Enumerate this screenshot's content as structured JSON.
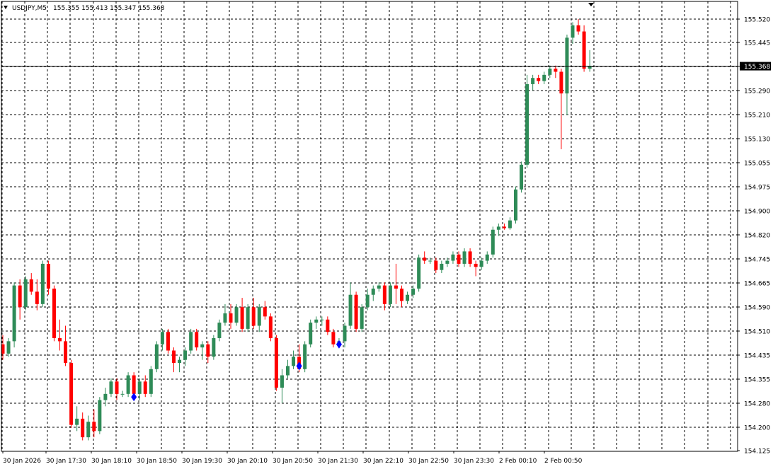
{
  "header": {
    "symbol": "USDJPY,M5",
    "ohlc": "155.355 155.413 155.347 155.368"
  },
  "colors": {
    "background": "#ffffff",
    "grid": "#000000",
    "bull": "#2e8b57",
    "bear": "#ff0000",
    "marker": "#0000ff",
    "bid_line": "#000000",
    "price_tag_bg": "#000000",
    "price_tag_text": "#ffffff"
  },
  "icons": {
    "dropdown": "triangle-down-icon",
    "shift": "triangle-down-icon",
    "marker": "diamond-icon"
  },
  "chart_data": {
    "type": "candlestick",
    "ylim": [
      154.125,
      155.55
    ],
    "y_ticks": [
      "155.520",
      "155.445",
      "155.368",
      "155.290",
      "155.210",
      "155.130",
      "155.055",
      "154.975",
      "154.900",
      "154.820",
      "154.745",
      "154.665",
      "154.590",
      "154.510",
      "154.435",
      "154.355",
      "154.280",
      "154.200",
      "154.125"
    ],
    "current_price": "155.368",
    "x_labels": [
      "30 Jan 2026",
      "30 Jan 17:30",
      "30 Jan 18:10",
      "30 Jan 18:50",
      "30 Jan 19:30",
      "30 Jan 20:10",
      "30 Jan 20:50",
      "30 Jan 21:30",
      "30 Jan 22:10",
      "30 Jan 22:50",
      "30 Jan 23:30",
      "2 Feb 00:10",
      "2 Feb 00:50"
    ],
    "candles": [
      [
        154.47,
        154.5,
        154.42,
        154.44
      ],
      [
        154.44,
        154.49,
        154.43,
        154.48
      ],
      [
        154.48,
        154.67,
        154.46,
        154.66
      ],
      [
        154.66,
        154.68,
        154.55,
        154.59
      ],
      [
        154.59,
        154.69,
        154.58,
        154.68
      ],
      [
        154.68,
        154.7,
        154.63,
        154.64
      ],
      [
        154.64,
        154.68,
        154.58,
        154.6
      ],
      [
        154.6,
        154.74,
        154.59,
        154.73
      ],
      [
        154.73,
        154.74,
        154.63,
        154.65
      ],
      [
        154.65,
        154.66,
        154.48,
        154.49
      ],
      [
        154.49,
        154.55,
        154.45,
        154.48
      ],
      [
        154.48,
        154.53,
        154.4,
        154.41
      ],
      [
        154.41,
        154.42,
        154.2,
        154.21
      ],
      [
        154.21,
        154.27,
        154.19,
        154.23
      ],
      [
        154.23,
        154.25,
        154.16,
        154.17
      ],
      [
        154.17,
        154.24,
        154.16,
        154.22
      ],
      [
        154.22,
        154.26,
        154.17,
        154.19
      ],
      [
        154.19,
        154.3,
        154.18,
        154.29
      ],
      [
        154.29,
        154.33,
        154.27,
        154.31
      ],
      [
        154.31,
        154.36,
        154.3,
        154.35
      ],
      [
        154.35,
        154.36,
        154.29,
        154.31
      ],
      [
        154.31,
        154.32,
        154.3,
        154.31
      ],
      [
        154.31,
        154.38,
        154.3,
        154.37
      ],
      [
        154.37,
        154.38,
        154.3,
        154.31
      ],
      [
        154.31,
        154.36,
        154.29,
        154.35
      ],
      [
        154.35,
        154.37,
        154.3,
        154.31
      ],
      [
        154.31,
        154.4,
        154.3,
        154.39
      ],
      [
        154.39,
        154.48,
        154.38,
        154.47
      ],
      [
        154.47,
        154.52,
        154.45,
        154.51
      ],
      [
        154.51,
        154.52,
        154.44,
        154.45
      ],
      [
        154.45,
        154.46,
        154.38,
        154.41
      ],
      [
        154.41,
        154.43,
        154.38,
        154.42
      ],
      [
        154.42,
        154.46,
        154.4,
        154.45
      ],
      [
        154.45,
        154.52,
        154.44,
        154.51
      ],
      [
        154.51,
        154.52,
        154.45,
        154.46
      ],
      [
        154.46,
        154.48,
        154.42,
        154.47
      ],
      [
        154.47,
        154.48,
        154.41,
        154.43
      ],
      [
        154.43,
        154.5,
        154.42,
        154.49
      ],
      [
        154.49,
        154.55,
        154.48,
        154.54
      ],
      [
        154.54,
        154.6,
        154.53,
        154.57
      ],
      [
        154.57,
        154.6,
        154.52,
        154.54
      ],
      [
        154.54,
        154.6,
        154.53,
        154.59
      ],
      [
        154.59,
        154.62,
        154.51,
        154.52
      ],
      [
        154.52,
        154.6,
        154.51,
        154.59
      ],
      [
        154.59,
        154.62,
        154.52,
        154.53
      ],
      [
        154.53,
        154.6,
        154.51,
        154.59
      ],
      [
        154.59,
        154.61,
        154.55,
        154.56
      ],
      [
        154.56,
        154.57,
        154.48,
        154.49
      ],
      [
        154.49,
        154.5,
        154.32,
        154.33
      ],
      [
        154.33,
        154.39,
        154.28,
        154.37
      ],
      [
        154.37,
        154.42,
        154.36,
        154.4
      ],
      [
        154.4,
        154.45,
        154.39,
        154.43
      ],
      [
        154.43,
        154.47,
        154.38,
        154.39
      ],
      [
        154.39,
        154.48,
        154.38,
        154.47
      ],
      [
        154.47,
        154.55,
        154.46,
        154.54
      ],
      [
        154.54,
        154.56,
        154.52,
        154.55
      ],
      [
        154.55,
        154.56,
        154.53,
        154.55
      ],
      [
        154.55,
        154.56,
        154.5,
        154.51
      ],
      [
        154.51,
        154.52,
        154.46,
        154.47
      ],
      [
        154.47,
        154.49,
        154.46,
        154.48
      ],
      [
        154.48,
        154.54,
        154.46,
        154.53
      ],
      [
        154.53,
        154.67,
        154.52,
        154.63
      ],
      [
        154.63,
        154.64,
        154.51,
        154.52
      ],
      [
        154.52,
        154.6,
        154.51,
        154.59
      ],
      [
        154.59,
        154.65,
        154.58,
        154.63
      ],
      [
        154.63,
        154.66,
        154.61,
        154.65
      ],
      [
        154.65,
        154.67,
        154.64,
        154.66
      ],
      [
        154.66,
        154.67,
        154.58,
        154.6
      ],
      [
        154.6,
        154.67,
        154.59,
        154.66
      ],
      [
        154.66,
        154.73,
        154.6,
        154.65
      ],
      [
        154.65,
        154.66,
        154.59,
        154.61
      ],
      [
        154.61,
        154.64,
        154.6,
        154.63
      ],
      [
        154.63,
        154.66,
        154.62,
        154.65
      ],
      [
        154.65,
        154.76,
        154.64,
        154.75
      ],
      [
        154.75,
        154.77,
        154.73,
        154.74
      ],
      [
        154.74,
        154.75,
        154.73,
        154.74
      ],
      [
        154.74,
        154.75,
        154.7,
        154.71
      ],
      [
        154.71,
        154.74,
        154.7,
        154.73
      ],
      [
        154.73,
        154.75,
        154.72,
        154.74
      ],
      [
        154.74,
        154.77,
        154.73,
        154.76
      ],
      [
        154.76,
        154.77,
        154.72,
        154.73
      ],
      [
        154.73,
        154.78,
        154.72,
        154.77
      ],
      [
        154.77,
        154.78,
        154.72,
        154.73
      ],
      [
        154.73,
        154.74,
        154.69,
        154.72
      ],
      [
        154.72,
        154.75,
        154.71,
        154.74
      ],
      [
        154.74,
        154.77,
        154.73,
        154.76
      ],
      [
        154.76,
        154.85,
        154.75,
        154.84
      ],
      [
        154.84,
        154.86,
        154.82,
        154.85
      ],
      [
        154.85,
        154.86,
        154.84,
        154.845
      ],
      [
        154.845,
        154.88,
        154.84,
        154.87
      ],
      [
        154.87,
        154.98,
        154.86,
        154.97
      ],
      [
        154.97,
        155.06,
        154.96,
        155.05
      ],
      [
        155.05,
        155.34,
        155.04,
        155.31
      ],
      [
        155.31,
        155.34,
        155.29,
        155.33
      ],
      [
        155.33,
        155.34,
        155.31,
        155.32
      ],
      [
        155.32,
        155.35,
        155.31,
        155.34
      ],
      [
        155.34,
        155.37,
        155.33,
        155.36
      ],
      [
        155.36,
        155.37,
        155.33,
        155.35
      ],
      [
        155.35,
        155.36,
        155.1,
        155.28
      ],
      [
        155.28,
        155.47,
        155.21,
        155.46
      ],
      [
        155.46,
        155.51,
        155.44,
        155.5
      ],
      [
        155.5,
        155.52,
        155.47,
        155.48
      ],
      [
        155.48,
        155.5,
        155.35,
        155.36
      ],
      [
        155.36,
        155.42,
        155.35,
        155.368
      ]
    ],
    "markers": [
      {
        "index": 23,
        "price": 154.3
      },
      {
        "index": 52,
        "price": 154.4
      },
      {
        "index": 59,
        "price": 154.47
      }
    ]
  }
}
